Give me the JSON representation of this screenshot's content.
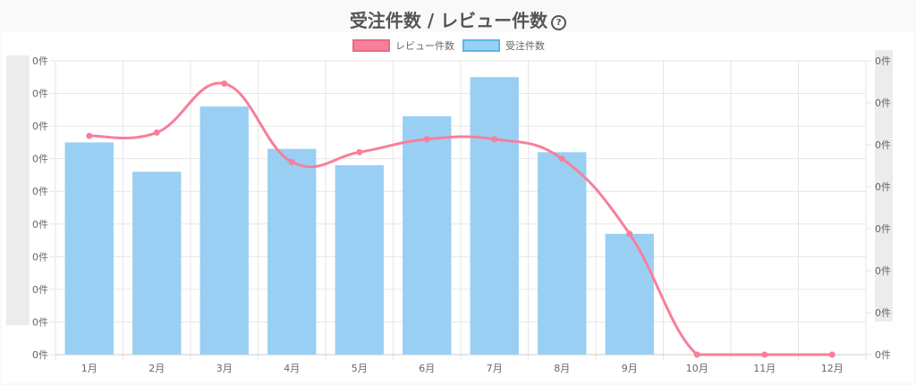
{
  "title": "受注件数 / レビュー件数",
  "help_icon": "question-circle-icon",
  "chart_data": {
    "type": "bar",
    "categories": [
      "1月",
      "2月",
      "3月",
      "4月",
      "5月",
      "6月",
      "7月",
      "8月",
      "9月",
      "10月",
      "11月",
      "12月"
    ],
    "series": [
      {
        "name": "レビュー件数",
        "type": "line",
        "axis": "right",
        "values": [
          67,
          68,
          83,
          59,
          62,
          66,
          66,
          60,
          37,
          0,
          0,
          0
        ],
        "color": "#f77f9a"
      },
      {
        "name": "受注件数",
        "type": "bar",
        "axis": "left",
        "values": [
          65,
          56,
          76,
          63,
          58,
          73,
          85,
          62,
          37,
          0,
          0,
          0
        ],
        "color": "#9acff4",
        "border": "#5cb3ed"
      }
    ],
    "left_axis": {
      "ylim": [
        0,
        90
      ],
      "tick_labels": [
        "0件",
        "0件",
        "0件",
        "0件",
        "0件",
        "0件",
        "0件",
        "0件",
        "0件",
        "0件"
      ]
    },
    "right_axis": {
      "ylim": [
        0,
        90
      ],
      "tick_labels": [
        "0件",
        "0件",
        "0件",
        "0件",
        "0件",
        "0件",
        "0件",
        "0件"
      ]
    },
    "legend_position": "top-center",
    "grid": true
  }
}
